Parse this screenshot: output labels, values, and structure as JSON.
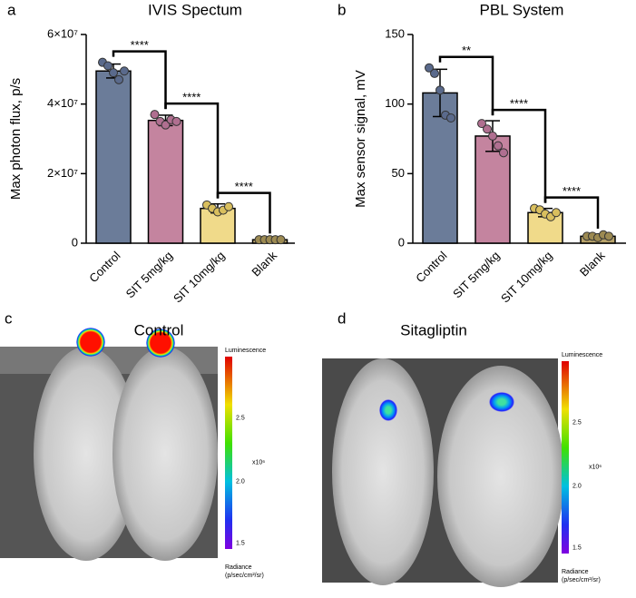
{
  "chart_data": [
    {
      "type": "bar",
      "letter": "a",
      "title": "IVIS Spectum",
      "y_label": "Max photon flux, p/s",
      "categories": [
        "Control",
        "SIT 5mg/kg",
        "SIT 10mg/kg",
        "Blank"
      ],
      "values": [
        49500000,
        35300000,
        10000000,
        1000000
      ],
      "errors": [
        2000000,
        1500000,
        1300000,
        200000
      ],
      "points": [
        [
          52000000,
          51000000,
          49000000,
          47000000,
          49500000
        ],
        [
          37000000,
          35000000,
          34000000,
          35500000,
          35000000
        ],
        [
          11000000,
          10000000,
          9000000,
          9500000,
          10500000
        ],
        [
          1000000,
          1000000,
          1000000,
          1000000,
          1000000
        ]
      ],
      "colors": [
        "#6b7c99",
        "#c4849f",
        "#f0da8a",
        "#b8a36a"
      ],
      "point_colors": [
        "#5a6a8c",
        "#b06f90",
        "#d9bf5e",
        "#9c8a52"
      ],
      "comparisons": [
        {
          "from": 0,
          "to": 1,
          "label": "****"
        },
        {
          "from": 1,
          "to": 2,
          "label": "****"
        },
        {
          "from": 2,
          "to": 3,
          "label": "****"
        }
      ],
      "ylim": [
        0,
        60000000
      ],
      "yticks": [
        0,
        {
          "value": 20000000,
          "label": "2×10⁷"
        },
        {
          "value": 40000000,
          "label": "4×10⁷"
        },
        {
          "value": 60000000,
          "label": "6×10⁷"
        }
      ]
    },
    {
      "type": "bar",
      "letter": "b",
      "title": "PBL System",
      "y_label": "Max sensor signal, mV",
      "categories": [
        "Control",
        "SIT 5mg/kg",
        "SIT 10mg/kg",
        "Blank"
      ],
      "values": [
        108,
        77,
        22,
        5
      ],
      "errors": [
        17,
        11,
        3,
        1.5
      ],
      "points": [
        [
          126,
          122,
          110,
          92,
          90
        ],
        [
          86,
          82,
          77,
          70,
          65
        ],
        [
          25,
          24,
          21,
          19,
          22
        ],
        [
          5,
          5,
          4,
          6,
          5
        ]
      ],
      "colors": [
        "#6b7c99",
        "#c4849f",
        "#f0da8a",
        "#b8a36a"
      ],
      "point_colors": [
        "#5a6a8c",
        "#b06f90",
        "#d9bf5e",
        "#9c8a52"
      ],
      "comparisons": [
        {
          "from": 0,
          "to": 1,
          "label": "**"
        },
        {
          "from": 1,
          "to": 2,
          "label": "****"
        },
        {
          "from": 2,
          "to": 3,
          "label": "****"
        }
      ],
      "ylim": [
        0,
        150
      ],
      "yticks": [
        0,
        50,
        100,
        150
      ]
    }
  ],
  "panels": [
    {
      "letter": "c",
      "title": "Control",
      "colorbar_title": "Luminescence",
      "scale": "x10⁶",
      "ticks": [
        "2.5",
        "2.0",
        "1.5"
      ],
      "unit_title": "Radiance",
      "unit": "(p/sec/cm²/sr)"
    },
    {
      "letter": "d",
      "title": "Sitagliptin",
      "colorbar_title": "Luminescence",
      "scale": "x10⁶",
      "ticks": [
        "2.5",
        "2.0",
        "1.5"
      ],
      "unit_title": "Radiance",
      "unit": "(p/sec/cm²/sr)"
    }
  ]
}
